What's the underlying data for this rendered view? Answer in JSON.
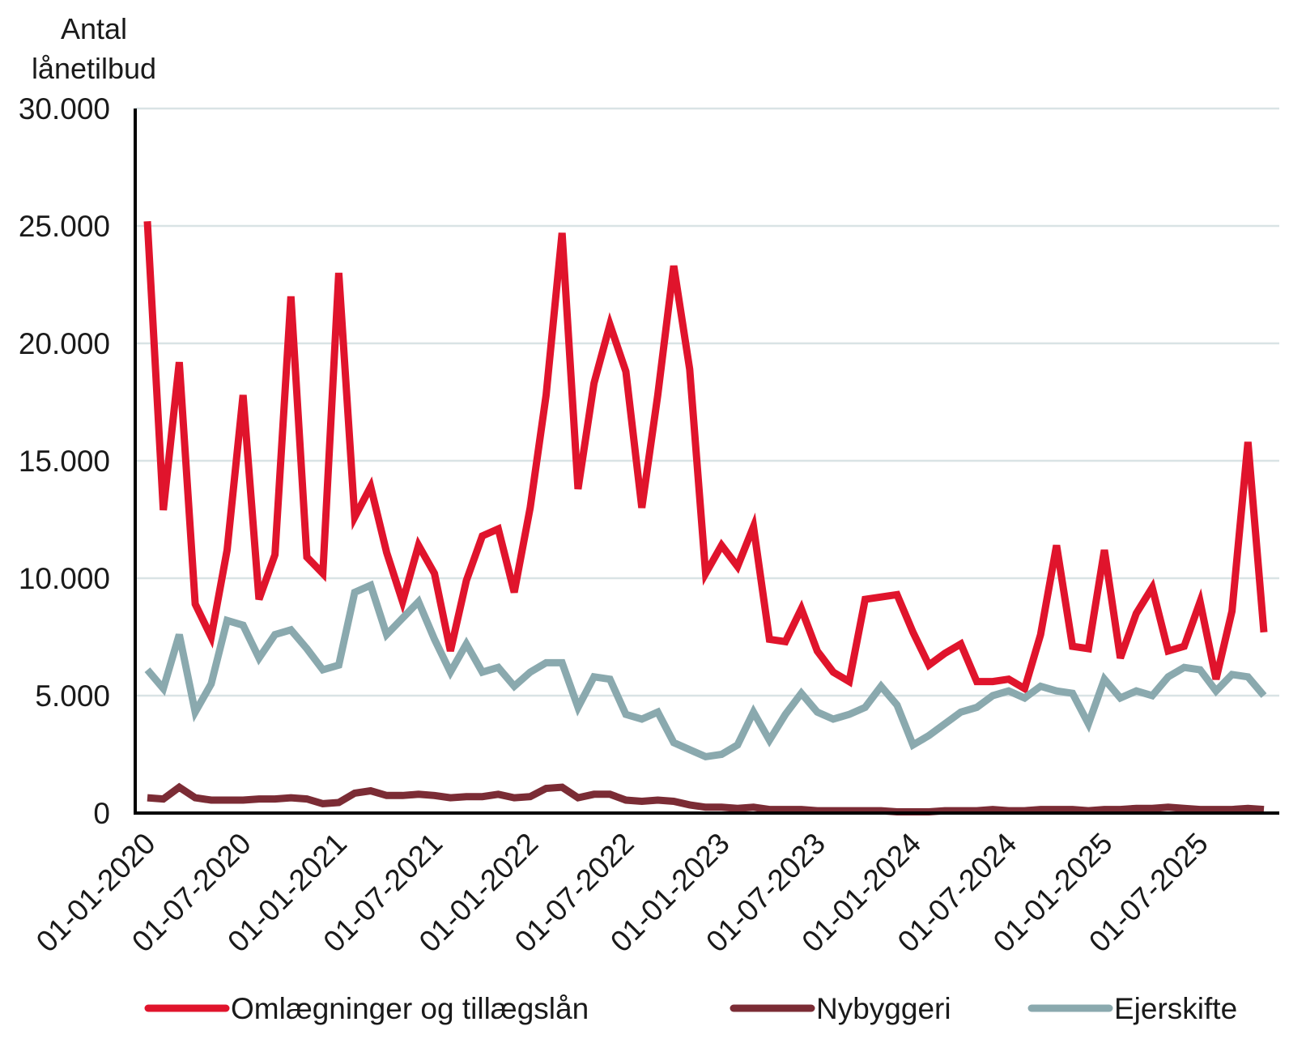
{
  "chart_data": {
    "type": "line",
    "title": "",
    "ylabel_lines": [
      "Antal",
      "lånetilbud"
    ],
    "xlabel": "",
    "ylim": [
      0,
      30000
    ],
    "yticks": [
      0,
      5000,
      10000,
      15000,
      20000,
      25000,
      30000
    ],
    "ytick_labels": [
      "0",
      "5.000",
      "10.000",
      "15.000",
      "20.000",
      "25.000",
      "30.000"
    ],
    "grid": true,
    "x_tick_labels": [
      "01-01-2020",
      "01-07-2020",
      "01-01-2021",
      "01-07-2021",
      "01-01-2022",
      "01-07-2022",
      "01-01-2023",
      "01-07-2023",
      "01-01-2024",
      "01-07-2024",
      "01-01-2025",
      "01-07-2025"
    ],
    "x_tick_month_index": [
      0,
      6,
      12,
      18,
      24,
      30,
      36,
      42,
      48,
      54,
      60,
      66
    ],
    "n_months": 71,
    "legend_position": "bottom",
    "series": [
      {
        "name": "Omlægninger og tillægslån",
        "color": "#e0142c",
        "values": [
          25200,
          12900,
          19200,
          8900,
          7500,
          11200,
          17800,
          9100,
          11000,
          22000,
          10900,
          10200,
          23000,
          12600,
          13900,
          11100,
          9000,
          11400,
          10200,
          6900,
          9900,
          11800,
          12100,
          9400,
          13000,
          17800,
          24700,
          13800,
          18300,
          20800,
          18800,
          13000,
          17800,
          23300,
          18900,
          10200,
          11400,
          10500,
          12200,
          7400,
          7300,
          8700,
          6900,
          6000,
          5600,
          9100,
          9200,
          9300,
          7700,
          6300,
          6800,
          7200,
          5600,
          5600,
          5700,
          5300,
          7600,
          11400,
          7100,
          7000,
          11200,
          6600,
          8500,
          9600,
          6900,
          7100,
          9000,
          5700,
          8600,
          15800,
          7700
        ]
      },
      {
        "name": "Nybyggeri",
        "color": "#7b2c35",
        "values": [
          650,
          600,
          1100,
          650,
          550,
          550,
          550,
          600,
          600,
          650,
          600,
          400,
          450,
          850,
          950,
          750,
          750,
          800,
          750,
          650,
          700,
          700,
          800,
          650,
          700,
          1050,
          1100,
          650,
          800,
          800,
          550,
          500,
          550,
          500,
          350,
          250,
          250,
          200,
          250,
          150,
          150,
          150,
          100,
          100,
          100,
          100,
          100,
          50,
          50,
          50,
          100,
          100,
          100,
          150,
          100,
          100,
          150,
          150,
          150,
          100,
          150,
          150,
          200,
          200,
          250,
          200,
          150,
          150,
          150,
          200,
          150
        ]
      },
      {
        "name": "Ejerskifte",
        "color": "#8aa9ae",
        "values": [
          6100,
          5300,
          7600,
          4300,
          5500,
          8200,
          8000,
          6600,
          7600,
          7800,
          7000,
          6100,
          6300,
          9400,
          9700,
          7600,
          8300,
          9000,
          7400,
          6000,
          7200,
          6000,
          6200,
          5400,
          6000,
          6400,
          6400,
          4500,
          5800,
          5700,
          4200,
          4000,
          4300,
          3000,
          2700,
          2400,
          2500,
          2900,
          4300,
          3100,
          4200,
          5100,
          4300,
          4000,
          4200,
          4500,
          5400,
          4600,
          2900,
          3300,
          3800,
          4300,
          4500,
          5000,
          5200,
          4900,
          5400,
          5200,
          5100,
          3800,
          5700,
          4900,
          5200,
          5000,
          5800,
          6200,
          6100,
          5200,
          5900,
          5800,
          5000
        ]
      }
    ]
  }
}
